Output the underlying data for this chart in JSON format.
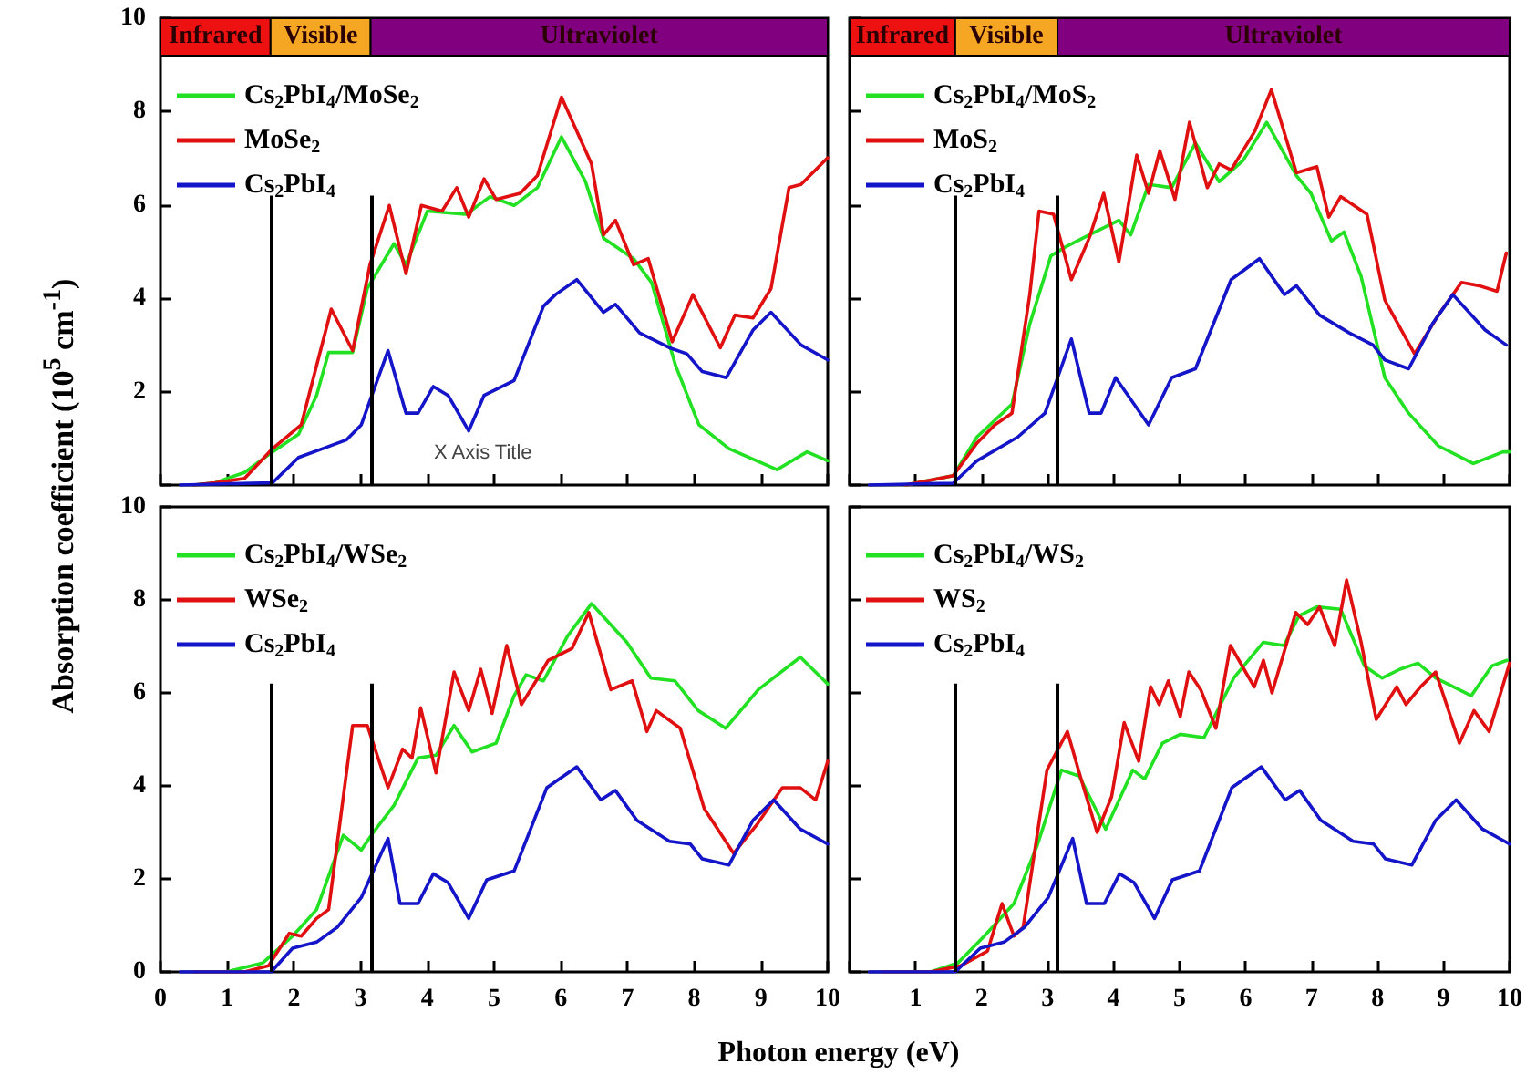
{
  "chart_data": [
    {
      "type": "line",
      "ylabel": "Absorption coefficient (10$^{5}$ cm$^{-1}$)",
      "xlim": [
        0,
        10
      ],
      "ylim": [
        0,
        10
      ],
      "xticks": [
        0,
        1,
        2,
        3,
        4,
        5,
        6,
        7,
        8,
        9,
        10
      ],
      "yticks": [
        {
          "value": 0,
          "label": null
        },
        2,
        4,
        6,
        8,
        10
      ],
      "tick_labels": "y",
      "legend": "top left",
      "marker": "none",
      "line_style": "solid",
      "annotations": [
        "X Axis Title"
      ],
      "ref_lines": [
        {
          "axis": "x",
          "value": 1.65,
          "color": "#000000"
        },
        {
          "axis": "x",
          "value": 3.15,
          "color": "#000000"
        }
      ],
      "bands": [
        {
          "axis": "x",
          "from": 0,
          "to": 1.65,
          "label": "Infrared",
          "color": "#ee1111"
        },
        {
          "axis": "x",
          "from": 1.65,
          "to": 3.15,
          "label": "Visible",
          "color": "#f5a623"
        },
        {
          "axis": "x",
          "from": 3.15,
          "to": 10,
          "label": "Ultraviolet",
          "color": "#800080"
        }
      ],
      "series": [
        {
          "name": "Cs$_{2}$PbI$_{4}$/MoSe$_{2}$",
          "color": "#22e022",
          "x": [
            0.5,
            0.82,
            1.26,
            1.68,
            2.07,
            2.34,
            2.52,
            2.88,
            3.1,
            3.5,
            3.68,
            4.0,
            4.58,
            4.94,
            5.3,
            5.65,
            6.01,
            6.37,
            6.64,
            7.09,
            7.36,
            7.72,
            8.07,
            8.52,
            9.24,
            9.69,
            10
          ],
          "values": [
            0,
            0.05,
            0.27,
            0.71,
            1.09,
            1.92,
            2.84,
            2.84,
            4.21,
            5.17,
            4.72,
            5.87,
            5.8,
            6.18,
            5.99,
            6.37,
            7.46,
            6.5,
            5.29,
            4.85,
            4.34,
            2.56,
            1.29,
            0.78,
            0.33,
            0.71,
            0.52
          ]
        },
        {
          "name": "MoSe$_{2}$",
          "color": "#e01010",
          "x": [
            0.5,
            0.82,
            1.26,
            1.68,
            2.11,
            2.34,
            2.56,
            2.88,
            3.14,
            3.43,
            3.68,
            3.91,
            4.22,
            4.44,
            4.62,
            4.85,
            5.03,
            5.39,
            5.65,
            6.01,
            6.46,
            6.64,
            6.82,
            7.09,
            7.31,
            7.67,
            7.98,
            8.39,
            8.61,
            8.88,
            9.15,
            9.42,
            9.6,
            10
          ],
          "values": [
            0,
            0.05,
            0.14,
            0.78,
            1.29,
            2.56,
            3.77,
            2.88,
            4.72,
            5.99,
            4.53,
            5.99,
            5.87,
            6.37,
            5.74,
            6.56,
            6.12,
            6.25,
            6.63,
            8.31,
            6.88,
            5.36,
            5.67,
            4.72,
            4.85,
            3.07,
            4.08,
            2.94,
            3.64,
            3.58,
            4.21,
            6.37,
            6.44,
            7.01
          ]
        },
        {
          "name": "Cs$_{2}$PbI$_{4}$",
          "color": "#1414c8",
          "x": [
            0.3,
            1.68,
            2.07,
            2.43,
            2.79,
            3.01,
            3.41,
            3.68,
            3.86,
            4.09,
            4.31,
            4.62,
            4.85,
            5.3,
            5.74,
            5.92,
            6.24,
            6.64,
            6.82,
            7.18,
            7.63,
            7.89,
            8.12,
            8.48,
            8.88,
            9.15,
            9.6,
            10
          ],
          "values": [
            0,
            0.05,
            0.59,
            0.78,
            0.97,
            1.29,
            2.88,
            1.54,
            1.54,
            2.11,
            1.92,
            1.16,
            1.92,
            2.24,
            3.83,
            4.08,
            4.4,
            3.7,
            3.87,
            3.26,
            2.94,
            2.81,
            2.43,
            2.3,
            3.32,
            3.7,
            3.0,
            2.68
          ]
        }
      ]
    },
    {
      "type": "line",
      "xlim": [
        0,
        10
      ],
      "ylim": [
        0,
        10
      ],
      "xticks": [
        0,
        1,
        2,
        3,
        4,
        5,
        6,
        7,
        8,
        9,
        10
      ],
      "yticks": [
        0,
        2,
        4,
        6,
        8,
        10
      ],
      "tick_labels": false,
      "legend": "top left",
      "marker": "none",
      "line_style": "solid",
      "ref_lines": [
        {
          "axis": "x",
          "value": 1.6,
          "color": "#000000"
        },
        {
          "axis": "x",
          "value": 3.15,
          "color": "#000000"
        }
      ],
      "bands": [
        {
          "axis": "x",
          "from": 0,
          "to": 1.6,
          "label": "Infrared",
          "color": "#ee1111"
        },
        {
          "axis": "x",
          "from": 1.6,
          "to": 3.15,
          "label": "Visible",
          "color": "#f5a623"
        },
        {
          "axis": "x",
          "from": 3.15,
          "to": 10,
          "label": "Ultraviolet",
          "color": "#800080"
        }
      ],
      "series": [
        {
          "name": "Cs$_{2}$PbI$_{4}$/MoS$_{2}$",
          "color": "#22e022",
          "x": [
            0.85,
            1.57,
            1.93,
            2.46,
            2.73,
            3.05,
            3.27,
            3.63,
            4.08,
            4.26,
            4.53,
            4.88,
            5.24,
            5.6,
            5.96,
            6.32,
            6.77,
            6.99,
            7.3,
            7.49,
            7.75,
            8.11,
            8.47,
            8.92,
            9.45,
            9.9,
            10
          ],
          "values": [
            0,
            0.2,
            1.03,
            1.73,
            3.45,
            4.91,
            5.1,
            5.36,
            5.67,
            5.36,
            6.44,
            6.37,
            7.33,
            6.5,
            6.95,
            7.77,
            6.63,
            6.25,
            5.23,
            5.42,
            4.47,
            2.3,
            1.54,
            0.84,
            0.46,
            0.71,
            0.71
          ]
        },
        {
          "name": "MoS$_{2}$",
          "color": "#e01010",
          "x": [
            0.85,
            1.57,
            1.93,
            2.2,
            2.46,
            2.73,
            2.87,
            3.09,
            3.36,
            3.63,
            3.85,
            4.08,
            4.35,
            4.53,
            4.7,
            4.93,
            5.15,
            5.42,
            5.6,
            5.78,
            6.14,
            6.39,
            6.77,
            7.08,
            7.26,
            7.44,
            7.84,
            8.11,
            8.56,
            8.92,
            9.27,
            9.54,
            9.81,
            9.95
          ],
          "values": [
            0,
            0.2,
            0.9,
            1.29,
            1.54,
            4.08,
            5.87,
            5.8,
            4.4,
            5.29,
            6.25,
            4.78,
            7.07,
            6.25,
            7.16,
            6.12,
            7.77,
            6.37,
            6.88,
            6.75,
            7.58,
            8.47,
            6.69,
            6.82,
            5.74,
            6.18,
            5.8,
            3.96,
            2.81,
            3.64,
            4.34,
            4.27,
            4.15,
            4.97
          ]
        },
        {
          "name": "Cs$_{2}$PbI$_{4}$",
          "color": "#1414c8",
          "x": [
            0.3,
            1.57,
            1.93,
            2.55,
            2.96,
            3.36,
            3.63,
            3.81,
            4.03,
            4.53,
            4.88,
            5.24,
            5.78,
            6.21,
            6.59,
            6.77,
            7.12,
            7.57,
            7.93,
            8.11,
            8.47,
            8.83,
            9.14,
            9.63,
            9.95
          ],
          "values": [
            0,
            0.04,
            0.52,
            1.03,
            1.54,
            3.13,
            1.54,
            1.54,
            2.3,
            1.29,
            2.3,
            2.49,
            4.4,
            4.85,
            4.08,
            4.27,
            3.64,
            3.26,
            3.0,
            2.68,
            2.49,
            3.45,
            4.08,
            3.32,
            3.0
          ]
        }
      ]
    },
    {
      "type": "line",
      "xlabel": "Photon energy (eV)",
      "xlim": [
        0,
        10
      ],
      "ylim": [
        0,
        10
      ],
      "xticks": [
        0,
        1,
        2,
        3,
        4,
        5,
        6,
        7,
        8,
        9,
        10
      ],
      "yticks": [
        0,
        2,
        4,
        6,
        8,
        10
      ],
      "legend": "top left",
      "marker": "none",
      "line_style": "solid",
      "ref_lines": [
        {
          "axis": "x",
          "value": 1.65,
          "color": "#000000"
        },
        {
          "axis": "x",
          "value": 3.15,
          "color": "#000000"
        }
      ],
      "series": [
        {
          "name": "Cs$_{2}$PbI$_{4}$/WSe$_{2}$",
          "color": "#22e022",
          "x": [
            0.5,
            0.99,
            1.53,
            1.98,
            2.34,
            2.74,
            3.01,
            3.19,
            3.5,
            3.86,
            4.13,
            4.4,
            4.67,
            5.03,
            5.3,
            5.48,
            5.74,
            6.1,
            6.46,
            6.99,
            7.35,
            7.71,
            8.06,
            8.47,
            8.96,
            9.59,
            10
          ],
          "values": [
            0,
            0,
            0.19,
            0.77,
            1.34,
            2.94,
            2.62,
            3.0,
            3.58,
            4.6,
            4.66,
            5.3,
            4.73,
            4.92,
            5.94,
            6.39,
            6.26,
            7.22,
            7.92,
            7.09,
            6.32,
            6.26,
            5.62,
            5.24,
            6.07,
            6.77,
            6.19
          ]
        },
        {
          "name": "WSe$_{2}$",
          "color": "#e01010",
          "x": [
            0.5,
            1.26,
            1.62,
            1.93,
            2.11,
            2.34,
            2.52,
            2.88,
            3.1,
            3.41,
            3.63,
            3.77,
            3.9,
            4.13,
            4.4,
            4.62,
            4.8,
            4.97,
            5.19,
            5.41,
            5.63,
            5.81,
            6.17,
            6.42,
            6.75,
            7.07,
            7.29,
            7.43,
            7.79,
            8.15,
            8.59,
            8.95,
            9.32,
            9.59,
            9.82,
            10
          ],
          "values": [
            0,
            0,
            0.13,
            0.83,
            0.77,
            1.15,
            1.34,
            5.3,
            5.3,
            3.96,
            4.79,
            4.6,
            5.68,
            4.28,
            6.45,
            5.62,
            6.51,
            5.56,
            7.02,
            5.75,
            6.26,
            6.7,
            6.96,
            7.73,
            6.07,
            6.26,
            5.17,
            5.62,
            5.24,
            3.51,
            2.55,
            3.19,
            3.96,
            3.96,
            3.7,
            4.53
          ]
        },
        {
          "name": "Cs$_{2}$PbI$_{4}$",
          "color": "#1414c8",
          "x": [
            0.3,
            1.66,
            1.98,
            2.34,
            2.65,
            3.01,
            3.41,
            3.59,
            3.86,
            4.09,
            4.31,
            4.62,
            4.89,
            5.3,
            5.79,
            6.24,
            6.6,
            6.82,
            7.14,
            7.63,
            7.94,
            8.12,
            8.52,
            8.88,
            9.19,
            9.59,
            10
          ],
          "values": [
            0,
            0,
            0.51,
            0.64,
            0.96,
            1.6,
            2.87,
            1.47,
            1.47,
            2.11,
            1.92,
            1.15,
            1.98,
            2.17,
            3.96,
            4.41,
            3.7,
            3.9,
            3.26,
            2.81,
            2.75,
            2.43,
            2.3,
            3.26,
            3.7,
            3.07,
            2.75
          ]
        }
      ]
    },
    {
      "type": "line",
      "xlim": [
        0,
        10
      ],
      "ylim": [
        0,
        10
      ],
      "xticks": [
        {
          "value": 0,
          "label": null
        },
        1,
        2,
        3,
        4,
        5,
        6,
        7,
        8,
        9,
        10
      ],
      "yticks": [
        0,
        2,
        4,
        6,
        8,
        10
      ],
      "tick_labels": "x",
      "legend": "top left",
      "marker": "none",
      "line_style": "solid",
      "ref_lines": [
        {
          "axis": "x",
          "value": 1.6,
          "color": "#000000"
        },
        {
          "axis": "x",
          "value": 3.15,
          "color": "#000000"
        }
      ],
      "series": [
        {
          "name": "Cs$_{2}$PbI$_{4}$/WS$_{2}$",
          "color": "#22e022",
          "x": [
            0.5,
            1.23,
            1.64,
            2.04,
            2.49,
            2.85,
            3.21,
            3.48,
            3.88,
            4.29,
            4.47,
            4.74,
            5.01,
            5.37,
            5.82,
            6.27,
            6.58,
            6.81,
            7.08,
            7.44,
            7.8,
            8.07,
            8.34,
            8.61,
            8.88,
            9.42,
            9.73,
            9.96
          ],
          "values": [
            0,
            0,
            0.19,
            0.77,
            1.47,
            2.75,
            4.34,
            4.21,
            3.07,
            4.34,
            4.15,
            4.92,
            5.11,
            5.04,
            6.32,
            7.09,
            7.02,
            7.66,
            7.85,
            7.8,
            6.58,
            6.32,
            6.51,
            6.64,
            6.32,
            5.94,
            6.58,
            6.7
          ]
        },
        {
          "name": "WS$_{2}$",
          "color": "#e01010",
          "x": [
            0.5,
            1.23,
            1.68,
            2.09,
            2.31,
            2.49,
            2.63,
            2.99,
            3.3,
            3.48,
            3.75,
            3.97,
            4.16,
            4.38,
            4.56,
            4.69,
            4.83,
            5.01,
            5.14,
            5.32,
            5.55,
            5.77,
            6.13,
            6.27,
            6.4,
            6.76,
            6.94,
            7.12,
            7.35,
            7.53,
            7.75,
            7.98,
            8.29,
            8.43,
            8.65,
            8.88,
            9.24,
            9.46,
            9.69,
            10
          ],
          "values": [
            0,
            0,
            0.13,
            0.45,
            1.47,
            0.77,
            0.96,
            4.34,
            5.17,
            4.28,
            3.0,
            3.77,
            5.36,
            4.53,
            6.13,
            5.75,
            6.26,
            5.49,
            6.45,
            6.07,
            5.24,
            7.02,
            6.13,
            6.7,
            6.0,
            7.73,
            7.47,
            7.85,
            7.02,
            8.43,
            7.09,
            5.43,
            6.13,
            5.75,
            6.13,
            6.45,
            4.92,
            5.62,
            5.17,
            6.64
          ]
        },
        {
          "name": "Cs$_{2}$PbI$_{4}$",
          "color": "#1414c8",
          "x": [
            0.3,
            1.6,
            1.98,
            2.34,
            2.65,
            3.01,
            3.38,
            3.59,
            3.86,
            4.09,
            4.31,
            4.62,
            4.89,
            5.3,
            5.79,
            6.24,
            6.6,
            6.82,
            7.14,
            7.63,
            7.94,
            8.12,
            8.52,
            8.88,
            9.19,
            9.59,
            10
          ],
          "values": [
            0,
            0,
            0.51,
            0.64,
            0.96,
            1.6,
            2.87,
            1.47,
            1.47,
            2.11,
            1.92,
            1.15,
            1.98,
            2.17,
            3.96,
            4.41,
            3.7,
            3.9,
            3.26,
            2.81,
            2.75,
            2.43,
            2.3,
            3.26,
            3.7,
            3.07,
            2.75
          ]
        }
      ]
    }
  ]
}
